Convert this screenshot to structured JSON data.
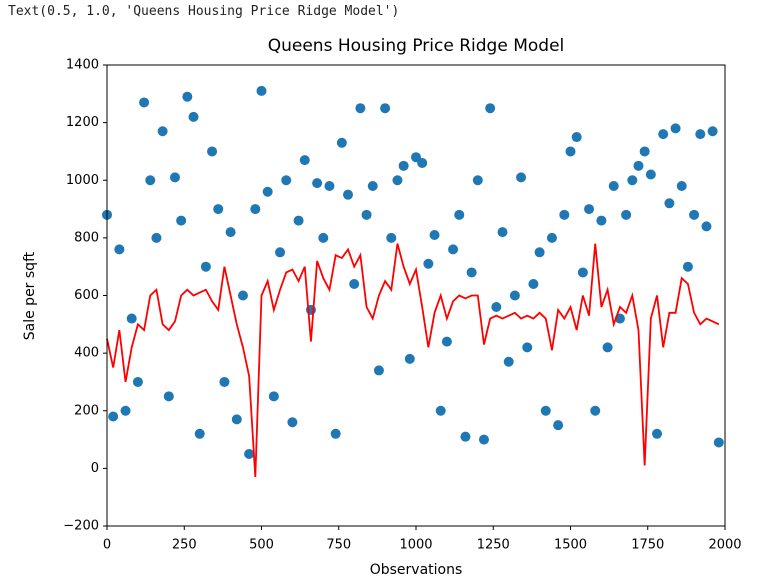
{
  "output_text": "Text(0.5, 1.0, 'Queens Housing Price Ridge Model')",
  "chart_data": {
    "type": "scatter",
    "title": "Queens Housing Price Ridge Model",
    "x_label": "Observations",
    "y_label": "Sale per sqft",
    "x": [
      0,
      20,
      40,
      60,
      80,
      100,
      120,
      140,
      160,
      180,
      200,
      220,
      240,
      260,
      280,
      300,
      320,
      340,
      360,
      380,
      400,
      420,
      440,
      460,
      480,
      500,
      520,
      540,
      560,
      580,
      600,
      620,
      640,
      660,
      680,
      700,
      720,
      740,
      760,
      780,
      800,
      820,
      840,
      860,
      880,
      900,
      920,
      940,
      960,
      980,
      1000,
      1020,
      1040,
      1060,
      1080,
      1100,
      1120,
      1140,
      1160,
      1180,
      1200,
      1220,
      1240,
      1260,
      1280,
      1300,
      1320,
      1340,
      1360,
      1380,
      1400,
      1420,
      1440,
      1460,
      1480,
      1500,
      1520,
      1540,
      1560,
      1580,
      1600,
      1620,
      1640,
      1660,
      1680,
      1700,
      1720,
      1740,
      1760,
      1780,
      1800,
      1820,
      1840,
      1860,
      1880,
      1900,
      1920,
      1940,
      1960,
      1980
    ],
    "series": [
      {
        "mark": "dot",
        "color": "#1f77b4",
        "values": [
          880,
          180,
          760,
          200,
          520,
          300,
          1270,
          1000,
          800,
          1170,
          250,
          1010,
          860,
          1290,
          1220,
          120,
          700,
          1100,
          900,
          300,
          820,
          170,
          600,
          50,
          900,
          1310,
          960,
          250,
          750,
          1000,
          160,
          860,
          1070,
          550,
          990,
          800,
          980,
          120,
          1130,
          950,
          640,
          1250,
          880,
          980,
          340,
          1250,
          800,
          1000,
          1050,
          380,
          1080,
          1060,
          710,
          810,
          200,
          440,
          760,
          880,
          110,
          680,
          1000,
          100,
          1250,
          560,
          820,
          370,
          600,
          1010,
          420,
          640,
          750,
          200,
          800,
          150,
          880,
          1100,
          1150,
          680,
          900,
          200,
          860,
          420,
          980,
          520,
          880,
          1000,
          1050,
          1100,
          1020,
          120,
          1160,
          920,
          1180,
          980,
          700,
          880,
          1160,
          840,
          1170,
          90
        ]
      },
      {
        "mark": "line",
        "color": "#ff0000",
        "values": [
          450,
          350,
          480,
          300,
          420,
          500,
          480,
          600,
          620,
          500,
          480,
          510,
          600,
          620,
          600,
          610,
          620,
          580,
          550,
          700,
          600,
          500,
          420,
          320,
          -30,
          600,
          650,
          550,
          620,
          680,
          690,
          650,
          700,
          440,
          720,
          660,
          620,
          740,
          730,
          760,
          700,
          740,
          560,
          520,
          600,
          650,
          620,
          780,
          700,
          640,
          690,
          560,
          420,
          540,
          600,
          520,
          580,
          600,
          590,
          600,
          600,
          430,
          520,
          530,
          520,
          530,
          540,
          520,
          530,
          520,
          540,
          520,
          410,
          550,
          520,
          560,
          480,
          600,
          530,
          780,
          560,
          620,
          500,
          560,
          540,
          600,
          480,
          10,
          520,
          600,
          420,
          540,
          540,
          660,
          640,
          540,
          500,
          520,
          510,
          500
        ]
      }
    ],
    "xlim": [
      0,
      2000
    ],
    "xticks": [
      0,
      250,
      500,
      750,
      1000,
      1250,
      1500,
      1750,
      2000
    ],
    "ylim": [
      -200,
      1400
    ],
    "yticks": [
      {
        "value": -200,
        "label": "−200"
      },
      0,
      200,
      400,
      600,
      800,
      1000,
      1200,
      1400
    ]
  }
}
